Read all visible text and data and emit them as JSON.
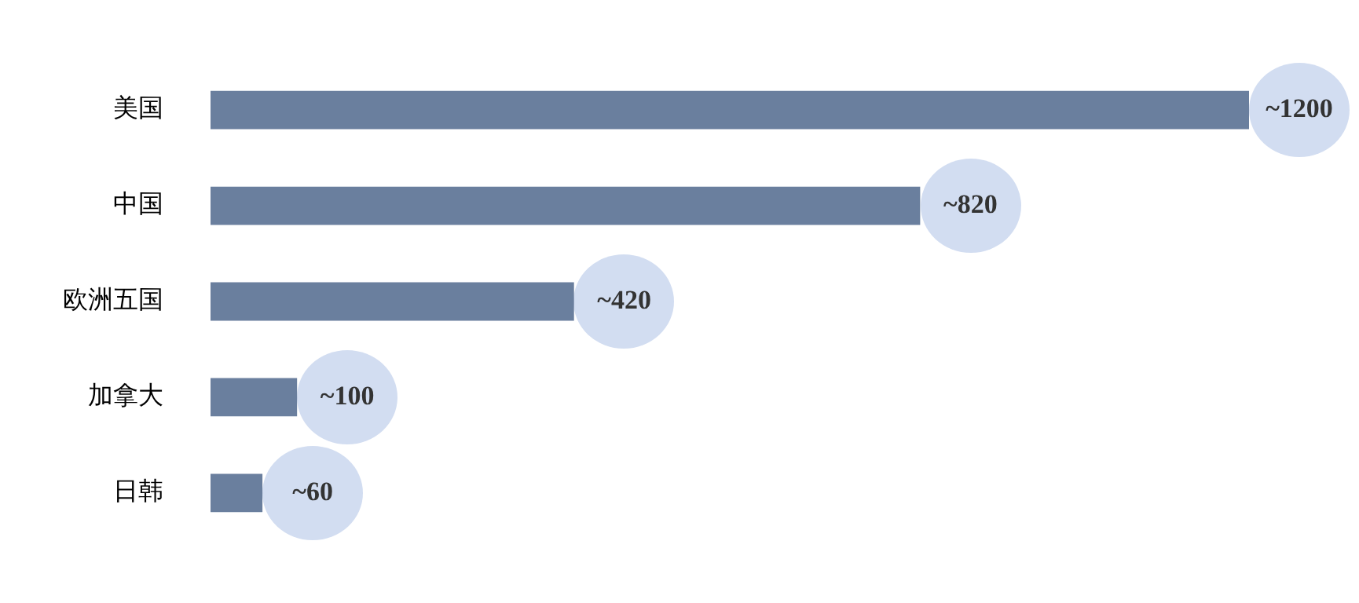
{
  "chart_data": {
    "type": "bar",
    "orientation": "horizontal",
    "categories": [
      "美国",
      "中国",
      "欧洲五国",
      "加拿大",
      "日韩"
    ],
    "values": [
      1200,
      820,
      420,
      100,
      60
    ],
    "value_labels": [
      "~1200",
      "~820",
      "~420",
      "~100",
      "~60"
    ],
    "color": "#6a7f9e",
    "tick_labels": "y"
  }
}
